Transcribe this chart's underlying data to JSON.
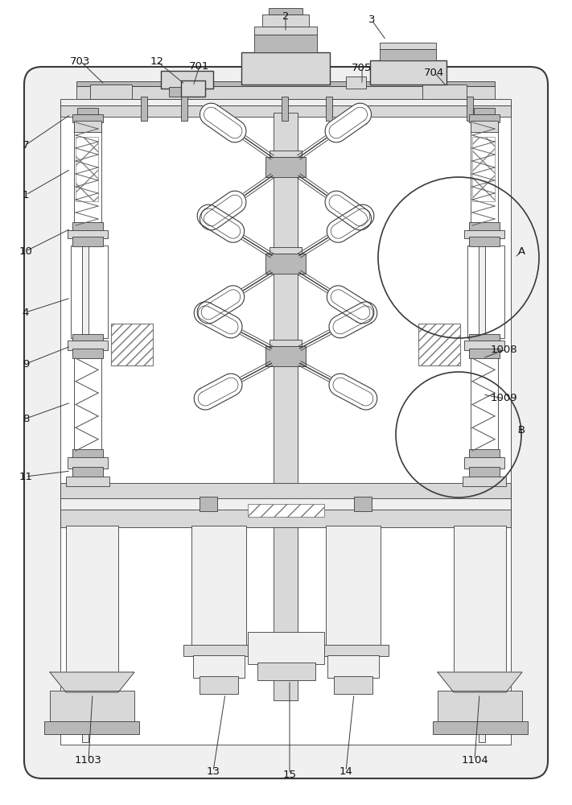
{
  "bg_color": "#ffffff",
  "line_color": "#3a3a3a",
  "lw_main": 1.0,
  "lw_thin": 0.6,
  "lw_thick": 1.5,
  "fc_light": "#f0f0f0",
  "fc_med": "#d8d8d8",
  "fc_dark": "#b8b8b8",
  "fc_white": "#ffffff",
  "spring_color": "#606060"
}
